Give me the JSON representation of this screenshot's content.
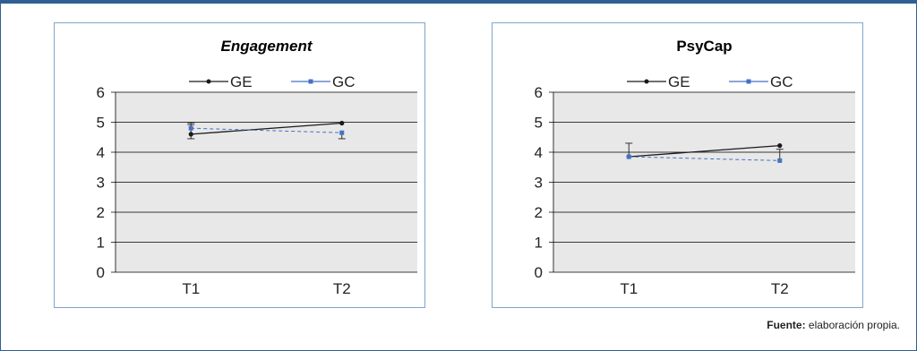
{
  "colors": {
    "frame": "#2f5f93",
    "panel_border": "#7fa6cb",
    "plot_bg": "#e8e8e8",
    "ge": "#1a1a1a",
    "gc": "#4472c4"
  },
  "source": {
    "label": "Fuente:",
    "text": "elaboración propia."
  },
  "chart_data": [
    {
      "type": "line",
      "title": "Engagement",
      "title_italic": true,
      "categories": [
        "T1",
        "T2"
      ],
      "ylim": [
        0,
        6
      ],
      "yticks": [
        0,
        1,
        2,
        3,
        4,
        5,
        6
      ],
      "grid": true,
      "legend": "top",
      "series": [
        {
          "name": "GE",
          "values": [
            4.6,
            4.97
          ],
          "err_low": [
            0.15,
            0
          ],
          "err_high": [
            0.38,
            0
          ],
          "style": "solid",
          "marker": "circle",
          "color": "#1a1a1a"
        },
        {
          "name": "GC",
          "values": [
            4.8,
            4.65
          ],
          "err_low": [
            0,
            0.2
          ],
          "err_high": [
            0.12,
            0
          ],
          "style": "dashed",
          "marker": "square",
          "color": "#4472c4"
        }
      ]
    },
    {
      "type": "line",
      "title": "PsyCap",
      "title_italic": false,
      "categories": [
        "T1",
        "T2"
      ],
      "ylim": [
        0,
        6
      ],
      "yticks": [
        0,
        1,
        2,
        3,
        4,
        5,
        6
      ],
      "grid": true,
      "legend": "top",
      "series": [
        {
          "name": "GE",
          "values": [
            3.85,
            4.22
          ],
          "err_low": [
            0,
            0
          ],
          "err_high": [
            0.45,
            0
          ],
          "style": "solid",
          "marker": "circle",
          "color": "#1a1a1a"
        },
        {
          "name": "GC",
          "values": [
            3.85,
            3.72
          ],
          "err_low": [
            0,
            0
          ],
          "err_high": [
            0,
            0.38
          ],
          "style": "dashed",
          "marker": "square",
          "color": "#4472c4"
        }
      ]
    }
  ]
}
